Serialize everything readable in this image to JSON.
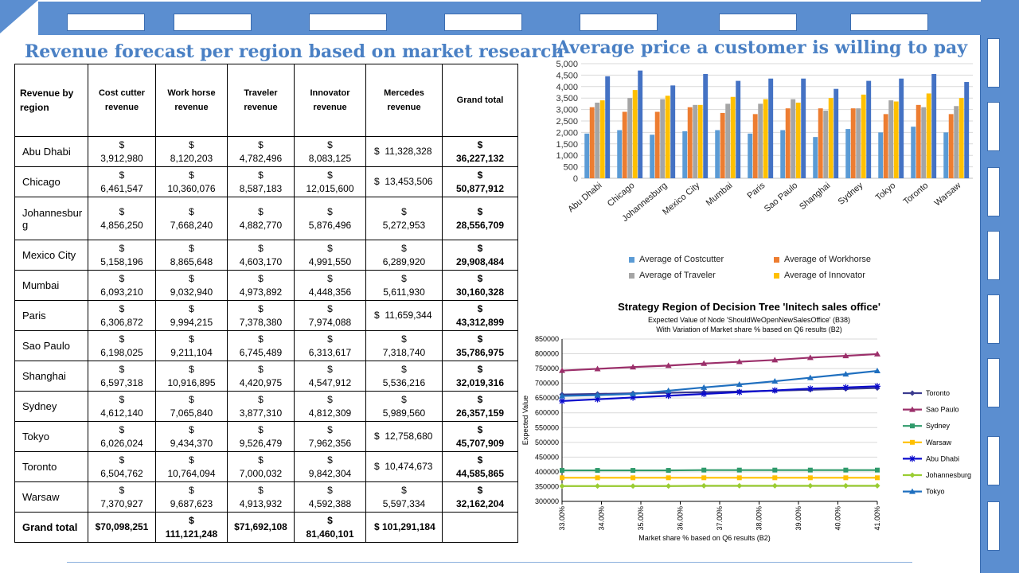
{
  "table": {
    "title": "Revenue forecast per region based on market research",
    "headers": [
      "Revenue by region",
      "Cost cutter revenue",
      "Work horse revenue",
      "Traveler revenue",
      "Innovator revenue",
      "Mercedes revenue",
      "Grand total"
    ],
    "rows": [
      {
        "region": "Abu Dhabi",
        "c": [
          "3,912,980",
          "8,120,203",
          "4,782,496",
          "8,083,125",
          "11,328,328",
          "36,227,132"
        ]
      },
      {
        "region": "Chicago",
        "c": [
          "6,461,547",
          "10,360,076",
          "8,587,183",
          "12,015,600",
          "13,453,506",
          "50,877,912"
        ]
      },
      {
        "region": "Johannesburg",
        "c": [
          "4,856,250",
          "7,668,240",
          "4,882,770",
          "5,876,496",
          "5,272,953",
          "28,556,709"
        ]
      },
      {
        "region": "Mexico City",
        "c": [
          "5,158,196",
          "8,865,648",
          "4,603,170",
          "4,991,550",
          "6,289,920",
          "29,908,484"
        ]
      },
      {
        "region": "Mumbai",
        "c": [
          "6,093,210",
          "9,032,940",
          "4,973,892",
          "4,448,356",
          "5,611,930",
          "30,160,328"
        ]
      },
      {
        "region": "Paris",
        "c": [
          "6,306,872",
          "9,994,215",
          "7,378,380",
          "7,974,088",
          "11,659,344",
          "43,312,899"
        ]
      },
      {
        "region": "Sao Paulo",
        "c": [
          "6,198,025",
          "9,211,104",
          "6,745,489",
          "6,313,617",
          "7,318,740",
          "35,786,975"
        ]
      },
      {
        "region": "Shanghai",
        "c": [
          "6,597,318",
          "10,916,895",
          "4,420,975",
          "4,547,912",
          "5,536,216",
          "32,019,316"
        ]
      },
      {
        "region": "Sydney",
        "c": [
          "4,612,140",
          "7,065,840",
          "3,877,310",
          "4,812,309",
          "5,989,560",
          "26,357,159"
        ]
      },
      {
        "region": "Tokyo",
        "c": [
          "6,026,024",
          "9,434,370",
          "9,526,479",
          "7,962,356",
          "12,758,680",
          "45,707,909"
        ]
      },
      {
        "region": "Toronto",
        "c": [
          "6,504,762",
          "10,764,094",
          "7,000,032",
          "9,842,304",
          "10,474,673",
          "44,585,865"
        ]
      },
      {
        "region": "Warsaw",
        "c": [
          "7,370,927",
          "9,687,623",
          "4,913,932",
          "4,592,388",
          "5,597,334",
          "32,162,204"
        ]
      }
    ],
    "grand": {
      "label": "Grand total",
      "c": [
        "$70,098,251",
        "111,121,248",
        "$71,692,108",
        "81,460,101",
        "$ 101,291,184",
        ""
      ]
    },
    "currency": "$"
  },
  "chart_data": [
    {
      "type": "bar",
      "title": "Average price a customer is willing to pay",
      "categories": [
        "Abu Dhabi",
        "Chicago",
        "Johannesburg",
        "Mexico City",
        "Mumbai",
        "Paris",
        "Sao Paulo",
        "Shanghai",
        "Sydney",
        "Tokyo",
        "Toronto",
        "Warsaw"
      ],
      "ylim": [
        0,
        5000
      ],
      "yticks": [
        "0",
        "500",
        "1,000",
        "1,500",
        "2,000",
        "2,500",
        "3,000",
        "3,500",
        "4,000",
        "4,500",
        "5,000"
      ],
      "series": [
        {
          "name": "Average of Costcutter",
          "color": "#5b9bd5",
          "values": [
            1950,
            2100,
            1900,
            2050,
            2100,
            1950,
            2100,
            1800,
            2150,
            2000,
            2250,
            2000
          ]
        },
        {
          "name": "Average of Workhorse",
          "color": "#ed7d31",
          "values": [
            3100,
            2900,
            2900,
            3100,
            2850,
            2800,
            3050,
            3050,
            3050,
            2800,
            3200,
            2800
          ]
        },
        {
          "name": "Average of Traveler",
          "color": "#a5a5a5",
          "values": [
            3300,
            3500,
            3450,
            3200,
            3250,
            3250,
            3450,
            2950,
            3050,
            3400,
            3100,
            3150
          ]
        },
        {
          "name": "Average of Innovator",
          "color": "#ffc000",
          "values": [
            3400,
            3850,
            3600,
            3200,
            3550,
            3450,
            3300,
            3500,
            3650,
            3350,
            3700,
            3500
          ]
        },
        {
          "name": "",
          "color": "#4472c4",
          "values": [
            4450,
            4700,
            4050,
            4550,
            4250,
            4350,
            4350,
            3900,
            4250,
            4350,
            4550,
            4200
          ]
        }
      ],
      "grid": true,
      "legend": "bottom"
    },
    {
      "type": "line",
      "title": "Strategy Region of Decision Tree 'Initech sales office'",
      "subtitle1": "Expected Value of Node 'ShouldWeOpenNewSalesOffice' (B38)",
      "subtitle2": "With Variation of Market share % based on Q6 results (B2)",
      "xlabel": "Market share % based on Q6 results (B2)",
      "ylabel": "Expected Value",
      "x": [
        33.0,
        33.9,
        34.8,
        35.7,
        36.6,
        37.5,
        38.4,
        39.3,
        40.2,
        41.0
      ],
      "xticks": [
        "33.00%",
        "34.00%",
        "35.00%",
        "36.00%",
        "37.00%",
        "38.00%",
        "39.00%",
        "40.00%",
        "41.00%"
      ],
      "xlim": [
        33,
        41
      ],
      "ylim": [
        300000,
        850000
      ],
      "yticks": [
        "300000",
        "350000",
        "400000",
        "450000",
        "500000",
        "550000",
        "600000",
        "650000",
        "700000",
        "750000",
        "800000",
        "850000"
      ],
      "series": [
        {
          "name": "Toronto",
          "color": "#3b3b8f",
          "marker": "diamond",
          "values": [
            662000,
            664000,
            666000,
            668000,
            670000,
            672000,
            675000,
            678000,
            681000,
            684000
          ]
        },
        {
          "name": "Sao Paulo",
          "color": "#9b2f6a",
          "marker": "triangle",
          "values": [
            743000,
            749000,
            755000,
            760000,
            767000,
            773000,
            779000,
            787000,
            793000,
            799000
          ]
        },
        {
          "name": "Sydney",
          "color": "#2f9a6b",
          "marker": "square",
          "values": [
            405000,
            405000,
            405000,
            405000,
            406000,
            406000,
            406000,
            406000,
            406000,
            406000
          ]
        },
        {
          "name": "Warsaw",
          "color": "#ffc000",
          "marker": "square",
          "values": [
            380000,
            380000,
            380000,
            380000,
            380000,
            380000,
            380000,
            380000,
            380000,
            380000
          ]
        },
        {
          "name": "Abu Dhabi",
          "color": "#0b0bcc",
          "marker": "star",
          "values": [
            640000,
            646000,
            652000,
            658000,
            664000,
            670000,
            676000,
            682000,
            686000,
            690000
          ]
        },
        {
          "name": "Johannesburg",
          "color": "#9acd32",
          "marker": "diamond",
          "values": [
            352000,
            352000,
            352000,
            352000,
            353000,
            353000,
            353000,
            353000,
            353000,
            353000
          ]
        },
        {
          "name": "Tokyo",
          "color": "#1f6fbf",
          "marker": "triangle",
          "values": [
            657000,
            660000,
            664000,
            675000,
            686000,
            696000,
            707000,
            719000,
            731000,
            742000
          ]
        }
      ]
    }
  ]
}
